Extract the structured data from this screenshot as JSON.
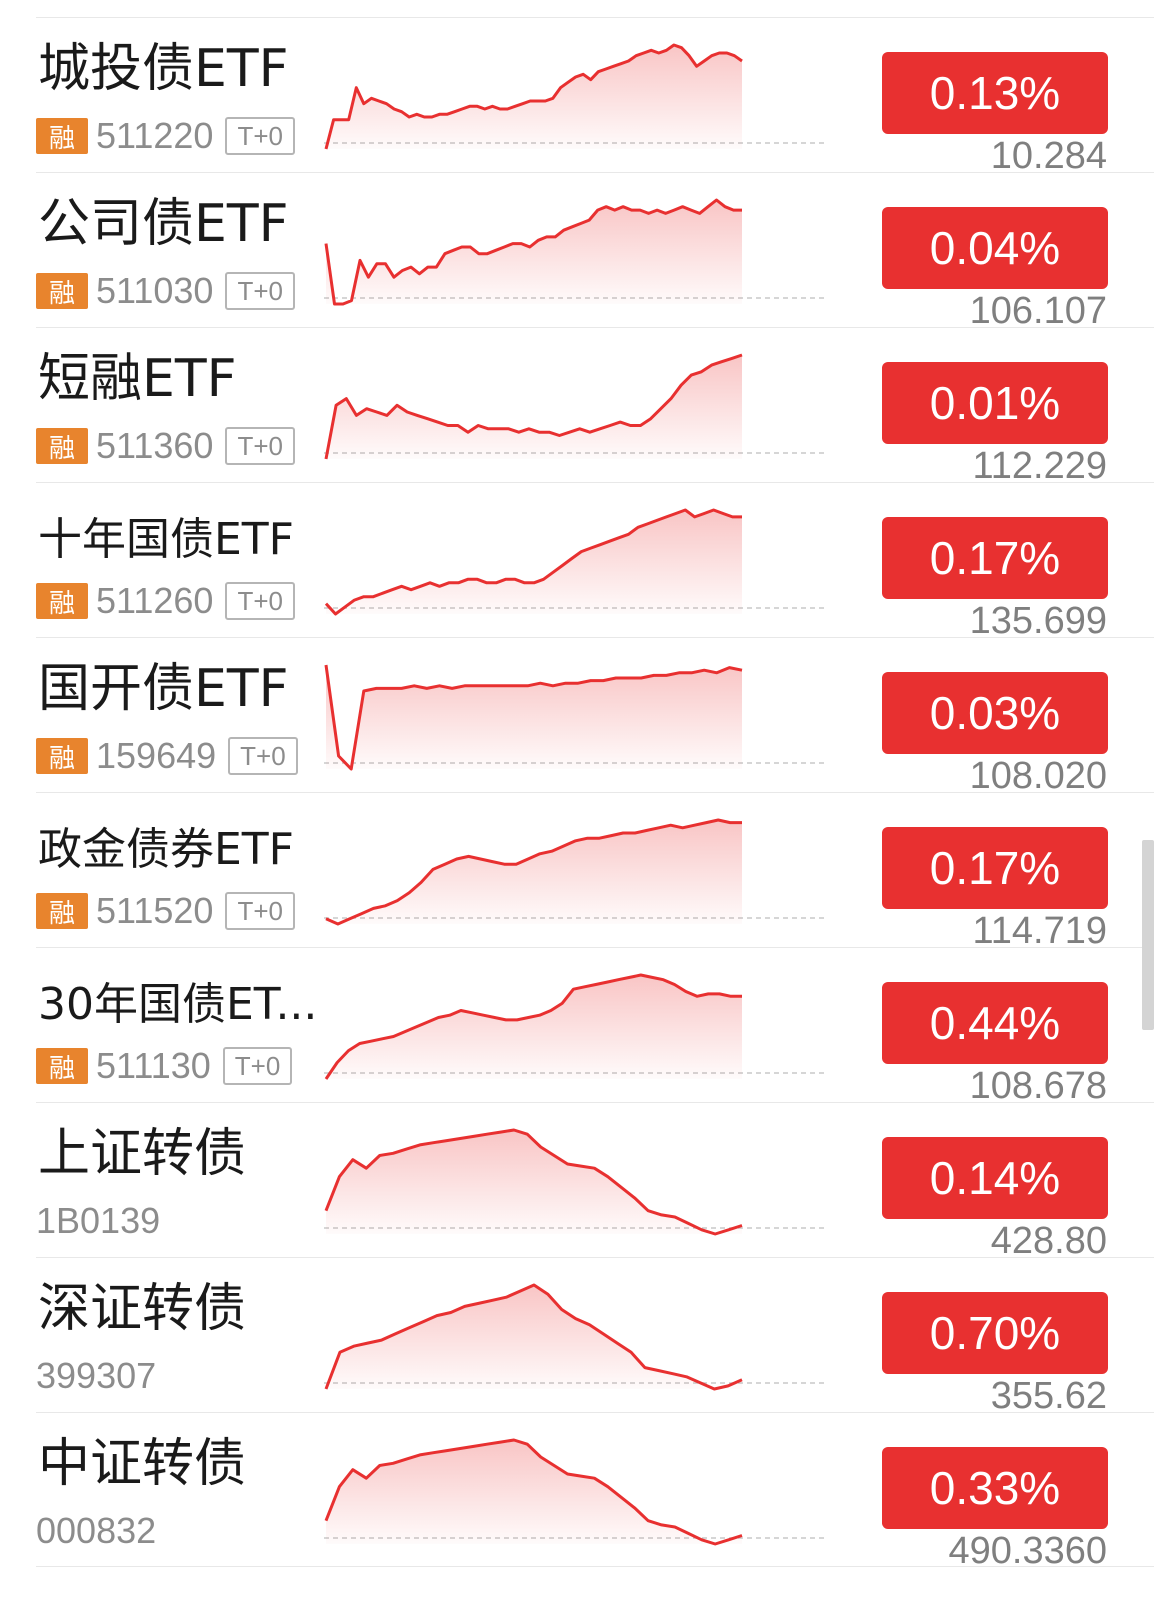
{
  "accent_up": "#e83030",
  "rong_color": "#e8842d",
  "rows": [
    {
      "name": "城投债ETF",
      "tag": "融",
      "code": "511220",
      "t0": "T+0",
      "change": "0.13%",
      "price": "10.284",
      "spark": [
        5,
        16,
        16,
        16,
        28,
        22,
        24,
        23,
        22,
        20,
        19,
        17,
        18,
        17,
        17,
        18,
        18,
        19,
        20,
        21,
        21,
        20,
        21,
        20,
        20,
        21,
        22,
        23,
        23,
        23,
        24,
        28,
        30,
        32,
        33,
        31,
        34,
        35,
        36,
        37,
        38,
        40,
        41,
        42,
        41,
        42,
        44,
        43,
        40,
        36,
        38,
        40,
        41,
        41,
        40,
        38
      ]
    },
    {
      "name": "公司债ETF",
      "tag": "融",
      "code": "511030",
      "t0": "T+0",
      "change": "0.04%",
      "price": "106.107",
      "spark": [
        20,
        2,
        2,
        3,
        15,
        10,
        14,
        14,
        10,
        12,
        13,
        11,
        13,
        13,
        17,
        18,
        19,
        19,
        17,
        17,
        18,
        19,
        20,
        20,
        19,
        21,
        22,
        22,
        24,
        25,
        26,
        27,
        30,
        31,
        30,
        31,
        30,
        30,
        29,
        30,
        29,
        30,
        31,
        30,
        29,
        31,
        33,
        31,
        30,
        30
      ]
    },
    {
      "name": "短融ETF",
      "tag": "融",
      "code": "511360",
      "t0": "T+0",
      "change": "0.01%",
      "price": "112.229",
      "spark": [
        2,
        18,
        20,
        15,
        17,
        16,
        15,
        18,
        16,
        15,
        14,
        13,
        12,
        12,
        10,
        12,
        11,
        11,
        11,
        10,
        11,
        10,
        10,
        9,
        10,
        11,
        10,
        11,
        12,
        13,
        12,
        12,
        14,
        17,
        20,
        24,
        27,
        28,
        30,
        31,
        32,
        33
      ]
    },
    {
      "name": "十年国债ETF",
      "tag": "融",
      "code": "511260",
      "t0": "T+0",
      "change": "0.17%",
      "price": "135.699",
      "spark": [
        5,
        2,
        4,
        6,
        7,
        7,
        8,
        9,
        10,
        9,
        10,
        11,
        10,
        11,
        11,
        12,
        12,
        11,
        11,
        12,
        12,
        11,
        11,
        12,
        14,
        16,
        18,
        20,
        21,
        22,
        23,
        24,
        25,
        27,
        28,
        29,
        30,
        31,
        32,
        30,
        31,
        32,
        31,
        30,
        30
      ]
    },
    {
      "name": "国开债ETF",
      "tag": "融",
      "code": "159649",
      "t0": "T+0",
      "change": "0.03%",
      "price": "108.020",
      "spark": [
        15,
        -20,
        -25,
        5,
        6,
        6,
        6,
        7,
        6,
        7,
        6,
        7,
        7,
        7,
        7,
        7,
        7,
        8,
        7,
        8,
        8,
        9,
        9,
        10,
        10,
        10,
        11,
        11,
        12,
        12,
        13,
        12,
        14,
        13
      ]
    },
    {
      "name": "政金债券ETF",
      "tag": "融",
      "code": "511520",
      "t0": "T+0",
      "change": "0.17%",
      "price": "114.719",
      "spark": [
        3,
        1,
        3,
        5,
        7,
        8,
        10,
        13,
        17,
        22,
        24,
        26,
        27,
        26,
        25,
        24,
        24,
        26,
        28,
        29,
        31,
        33,
        34,
        34,
        35,
        36,
        36,
        37,
        38,
        39,
        38,
        39,
        40,
        41,
        40,
        40
      ]
    },
    {
      "name": "30年国债ET...",
      "tag": "融",
      "code": "511130",
      "t0": "T+0",
      "change": "0.44%",
      "price": "108.678",
      "spark": [
        1,
        8,
        13,
        16,
        17,
        18,
        19,
        21,
        23,
        25,
        27,
        28,
        30,
        29,
        28,
        27,
        26,
        26,
        27,
        28,
        30,
        33,
        39,
        40,
        41,
        42,
        43,
        44,
        45,
        44,
        43,
        41,
        38,
        36,
        37,
        37,
        36,
        36
      ]
    },
    {
      "name": "上证转债",
      "tag": "",
      "code": "1B0139",
      "t0": "",
      "change": "0.14%",
      "price": "428.80",
      "spark": [
        14,
        30,
        38,
        34,
        40,
        41,
        43,
        45,
        46,
        47,
        48,
        49,
        50,
        51,
        52,
        50,
        44,
        40,
        36,
        35,
        34,
        30,
        25,
        20,
        14,
        12,
        11,
        8,
        5,
        3,
        5,
        7
      ]
    },
    {
      "name": "深证转债",
      "tag": "",
      "code": "399307",
      "t0": "",
      "change": "0.70%",
      "price": "355.62",
      "spark": [
        12,
        24,
        26,
        27,
        28,
        30,
        32,
        34,
        36,
        37,
        39,
        40,
        41,
        42,
        44,
        46,
        43,
        38,
        35,
        33,
        30,
        27,
        24,
        19,
        18,
        17,
        16,
        14,
        12,
        13,
        15
      ]
    },
    {
      "name": "中证转债",
      "tag": "",
      "code": "000832",
      "t0": "",
      "change": "0.33%",
      "price": "490.3360",
      "spark": [
        14,
        30,
        38,
        34,
        40,
        41,
        43,
        45,
        46,
        47,
        48,
        49,
        50,
        51,
        52,
        50,
        44,
        40,
        36,
        35,
        34,
        30,
        25,
        20,
        14,
        12,
        11,
        8,
        5,
        3,
        5,
        7
      ]
    }
  ]
}
